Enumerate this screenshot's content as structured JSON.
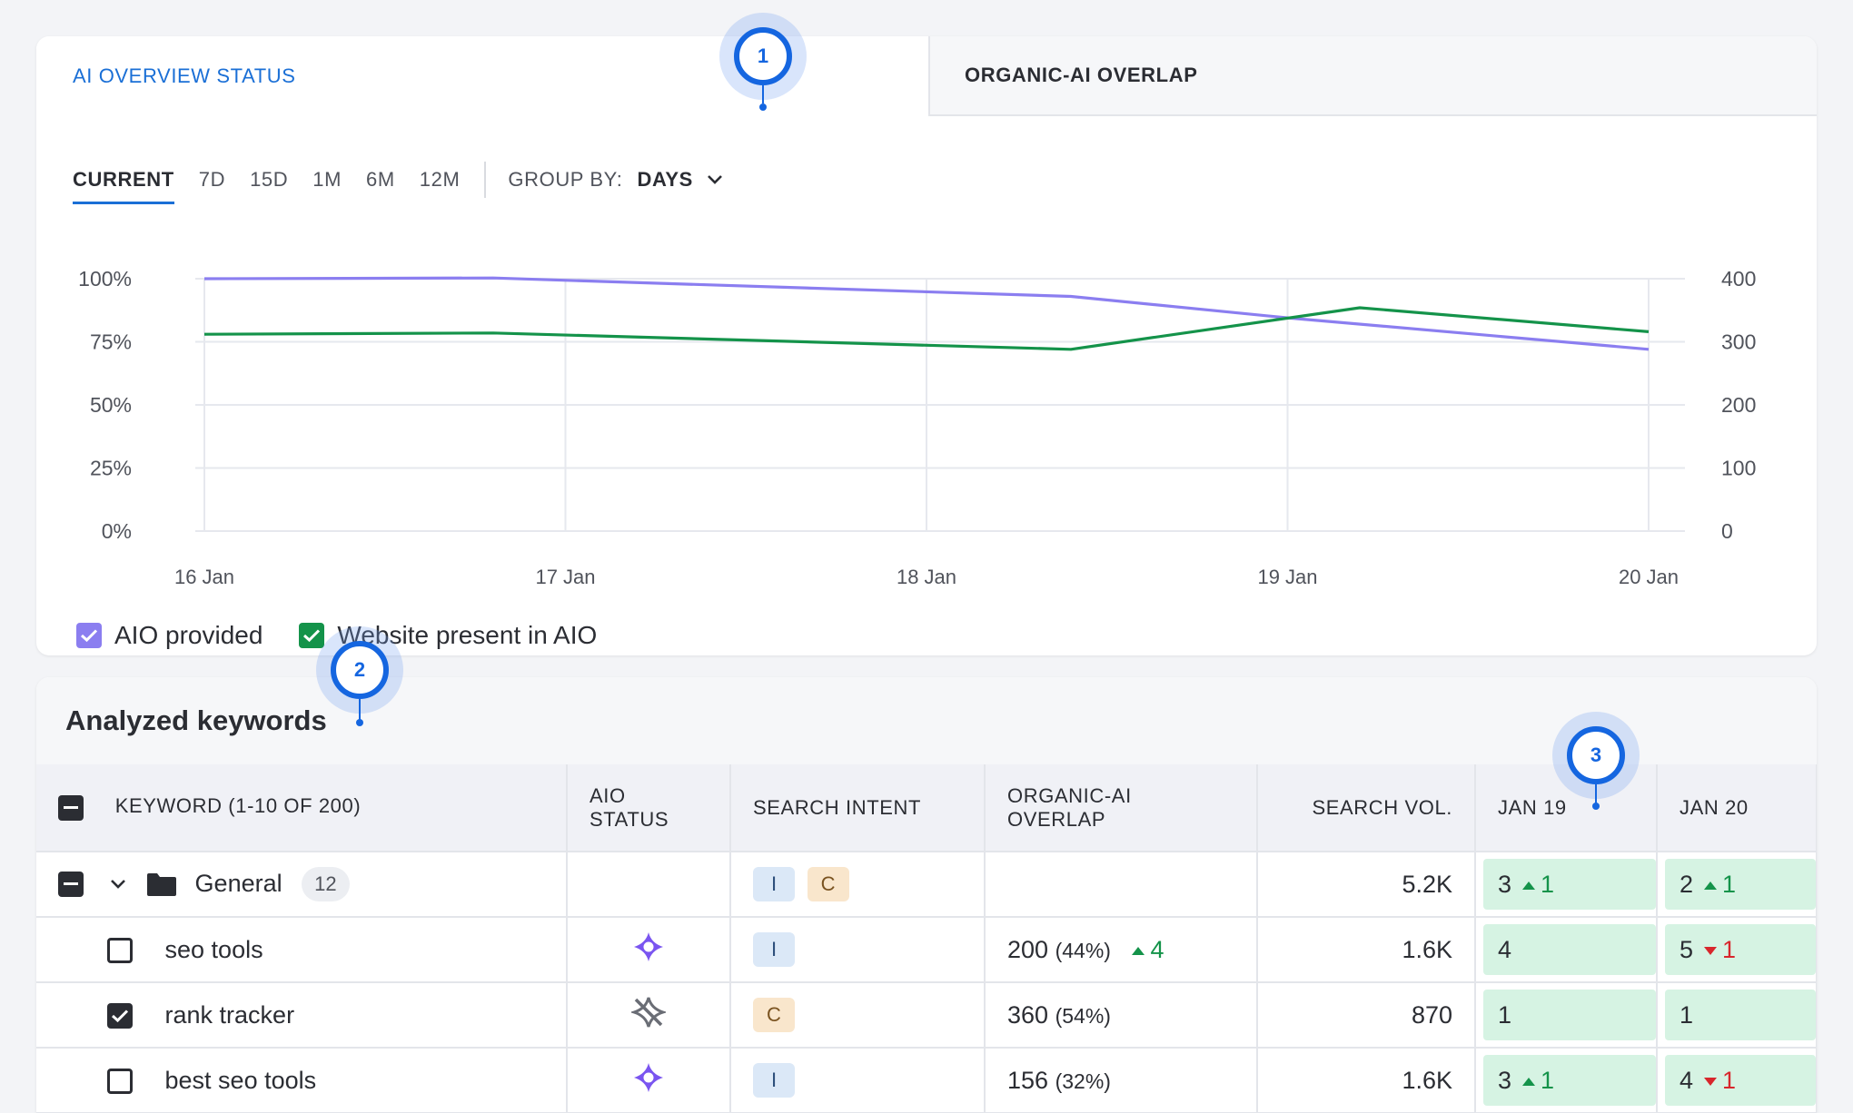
{
  "tabs": {
    "aio_status": "AI OVERVIEW STATUS",
    "organic_overlap": "ORGANIC-AI OVERLAP"
  },
  "periods": [
    "CURRENT",
    "7D",
    "15D",
    "1M",
    "6M",
    "12M"
  ],
  "group_by": {
    "label": "GROUP BY:",
    "value": "DAYS"
  },
  "chart_data": {
    "type": "line",
    "x": [
      "16 Jan",
      "17 Jan",
      "18 Jan",
      "19 Jan",
      "20 Jan"
    ],
    "y_left_ticks": [
      "100%",
      "75%",
      "50%",
      "25%",
      "0%"
    ],
    "y_right_ticks": [
      "400",
      "300",
      "200",
      "100",
      "0"
    ],
    "ylim_left": [
      0,
      100
    ],
    "ylim_right": [
      0,
      400
    ],
    "grid": true,
    "series": [
      {
        "name": "AIO provided",
        "color": "#8b7ef0",
        "points": [
          [
            0,
            100
          ],
          [
            0.8,
            100.3
          ],
          [
            2.4,
            93
          ],
          [
            3.0,
            84.5
          ],
          [
            4,
            72
          ]
        ]
      },
      {
        "name": "Website present in AIO",
        "color": "#14934a",
        "points": [
          [
            0,
            78
          ],
          [
            0.8,
            78.5
          ],
          [
            2.4,
            72
          ],
          [
            3.2,
            88.5
          ],
          [
            4,
            79
          ]
        ]
      }
    ]
  },
  "legend": {
    "aio_provided": "AIO provided",
    "website_present": "Website present in AIO"
  },
  "keywords_card": {
    "title": "Analyzed keywords",
    "columns": {
      "keyword": "KEYWORD (1-10 OF 200)",
      "aio_status": "AIO STATUS",
      "search_intent": "SEARCH INTENT",
      "organic_overlap": "ORGANIC-AI OVERLAP",
      "search_vol": "SEARCH VOL.",
      "jan19": "JAN 19",
      "jan20": "JAN 20"
    },
    "group": {
      "name": "General",
      "count": "12",
      "intents": [
        "I",
        "C"
      ],
      "volume": "5.2K",
      "jan19": "3",
      "jan19_delta": "1",
      "jan20": "2",
      "jan20_delta": "1"
    },
    "rows": [
      {
        "keyword": "seo tools",
        "checked": false,
        "aio": "sparkle-icon",
        "intent": "I",
        "overlap": "200",
        "overlap_pct": "(44%)",
        "overlap_delta": "4",
        "volume": "1.6K",
        "jan19": "4",
        "jan19_delta": "",
        "jan20": "5",
        "jan20_delta": "1",
        "jan20_dir": "down"
      },
      {
        "keyword": "rank tracker",
        "checked": true,
        "aio": "aio-off-icon",
        "intent": "C",
        "overlap": "360",
        "overlap_pct": "(54%)",
        "overlap_delta": "",
        "volume": "870",
        "jan19": "1",
        "jan19_delta": "",
        "jan20": "1",
        "jan20_delta": "",
        "jan20_dir": ""
      },
      {
        "keyword": "best seo tools",
        "checked": false,
        "aio": "sparkle-icon",
        "intent": "I",
        "overlap": "156",
        "overlap_pct": "(32%)",
        "overlap_delta": "",
        "volume": "1.6K",
        "jan19": "3",
        "jan19_delta": "1",
        "jan20": "4",
        "jan20_delta": "1",
        "jan20_dir": "down"
      }
    ]
  },
  "markers": [
    "1",
    "2",
    "3"
  ],
  "colors": {
    "accent": "#1a6fd6",
    "aio": "#8b7ef0",
    "website": "#14934a",
    "rank_bg": "#d6f3e3"
  }
}
